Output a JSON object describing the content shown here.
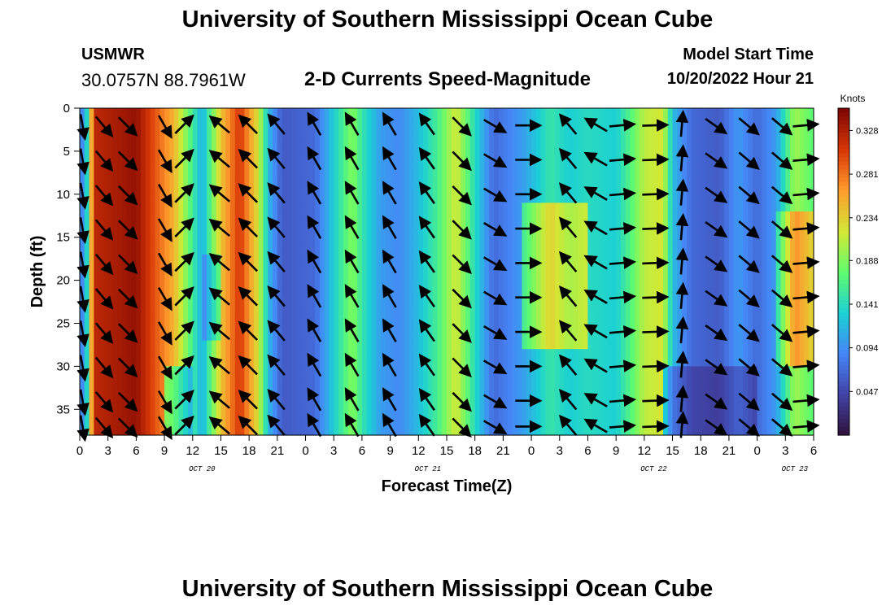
{
  "header": {
    "title": "University of Southern Mississippi Ocean Cube",
    "station_id": "USMWR",
    "coords": "30.0757N  88.7961W",
    "subtitle": "2-D Currents Speed-Magnitude",
    "model_start_label": "Model Start Time",
    "model_start_value": "10/20/2022 Hour 21"
  },
  "footer": {
    "title": "University of Southern Mississippi Ocean Cube"
  },
  "chart_data": {
    "type": "heatmap",
    "title": "2-D Currents Speed-Magnitude",
    "xlabel": "Forecast Time(Z)",
    "ylabel": "Depth (ft)",
    "x_tick_labels": [
      "0",
      "3",
      "6",
      "9",
      "12",
      "15",
      "18",
      "21",
      "0",
      "3",
      "6",
      "9",
      "12",
      "15",
      "18",
      "21",
      "0",
      "3",
      "6",
      "9",
      "12",
      "15",
      "18",
      "21",
      "0",
      "3",
      "6"
    ],
    "date_labels": [
      {
        "label": "OCT 20",
        "hour": 13
      },
      {
        "label": "OCT 21",
        "hour": 37
      },
      {
        "label": "OCT 22",
        "hour": 61
      },
      {
        "label": "OCT 23",
        "hour": 76
      }
    ],
    "x_range_hours": [
      0,
      78
    ],
    "y_ticks": [
      0,
      5,
      10,
      15,
      20,
      25,
      30,
      35
    ],
    "ylim": [
      0,
      38
    ],
    "y_inverted": true,
    "colorbar": {
      "title": "Knots",
      "ticks": [
        "0.328",
        "0.281",
        "0.234",
        "0.188",
        "0.141",
        "0.094",
        "0.047"
      ],
      "range": [
        0,
        0.352
      ]
    },
    "speed_bands": [
      {
        "hour": 0,
        "speed": 0.07
      },
      {
        "hour": 0.8,
        "speed": 0.14
      },
      {
        "hour": 1.5,
        "speed": 0.32
      },
      {
        "hour": 6,
        "speed": 0.34
      },
      {
        "hour": 10,
        "speed": 0.25
      },
      {
        "hour": 13,
        "speed": 0.11
      },
      {
        "hour": 15,
        "speed": 0.24
      },
      {
        "hour": 17,
        "speed": 0.31
      },
      {
        "hour": 19,
        "speed": 0.22
      },
      {
        "hour": 20,
        "speed": 0.12
      },
      {
        "hour": 21.5,
        "speed": 0.06
      },
      {
        "hour": 25,
        "speed": 0.07
      },
      {
        "hour": 26,
        "speed": 0.1
      },
      {
        "hour": 28,
        "speed": 0.16
      },
      {
        "hour": 29,
        "speed": 0.19
      },
      {
        "hour": 30,
        "speed": 0.15
      },
      {
        "hour": 32,
        "speed": 0.1
      },
      {
        "hour": 34,
        "speed": 0.09
      },
      {
        "hour": 36,
        "speed": 0.12
      },
      {
        "hour": 38,
        "speed": 0.16
      },
      {
        "hour": 40,
        "speed": 0.22
      },
      {
        "hour": 42,
        "speed": 0.14
      },
      {
        "hour": 44,
        "speed": 0.07
      },
      {
        "hour": 47,
        "speed": 0.1
      },
      {
        "hour": 50,
        "speed": 0.15
      },
      {
        "hour": 52,
        "speed": 0.13
      },
      {
        "hour": 54,
        "speed": 0.14
      },
      {
        "hour": 57,
        "speed": 0.13
      },
      {
        "hour": 59,
        "speed": 0.18
      },
      {
        "hour": 60,
        "speed": 0.21
      },
      {
        "hour": 62,
        "speed": 0.22
      },
      {
        "hour": 63,
        "speed": 0.12
      },
      {
        "hour": 65,
        "speed": 0.07
      },
      {
        "hour": 68,
        "speed": 0.06
      },
      {
        "hour": 70,
        "speed": 0.1
      },
      {
        "hour": 72,
        "speed": 0.07
      },
      {
        "hour": 74,
        "speed": 0.1
      },
      {
        "hour": 76,
        "speed": 0.2
      },
      {
        "hour": 78,
        "speed": 0.17
      }
    ],
    "arrows": [
      {
        "hour": 0.3,
        "dir_deg": 170
      },
      {
        "hour": 2.5,
        "dir_deg": 140
      },
      {
        "hour": 5,
        "dir_deg": 135
      },
      {
        "hour": 9,
        "dir_deg": 150
      },
      {
        "hour": 11,
        "dir_deg": 45
      },
      {
        "hour": 15,
        "dir_deg": 310
      },
      {
        "hour": 18,
        "dir_deg": 315
      },
      {
        "hour": 21,
        "dir_deg": 320
      },
      {
        "hour": 25,
        "dir_deg": 330
      },
      {
        "hour": 29,
        "dir_deg": 330
      },
      {
        "hour": 33,
        "dir_deg": 330
      },
      {
        "hour": 37,
        "dir_deg": 325
      },
      {
        "hour": 40.5,
        "dir_deg": 135
      },
      {
        "hour": 44,
        "dir_deg": 120
      },
      {
        "hour": 47.5,
        "dir_deg": 90
      },
      {
        "hour": 52,
        "dir_deg": 320
      },
      {
        "hour": 55,
        "dir_deg": 300
      },
      {
        "hour": 57.5,
        "dir_deg": 85
      },
      {
        "hour": 61,
        "dir_deg": 88
      },
      {
        "hour": 64,
        "dir_deg": 5
      },
      {
        "hour": 67.5,
        "dir_deg": 125
      },
      {
        "hour": 71,
        "dir_deg": 130
      },
      {
        "hour": 74.5,
        "dir_deg": 130
      },
      {
        "hour": 77,
        "dir_deg": 85
      }
    ]
  }
}
